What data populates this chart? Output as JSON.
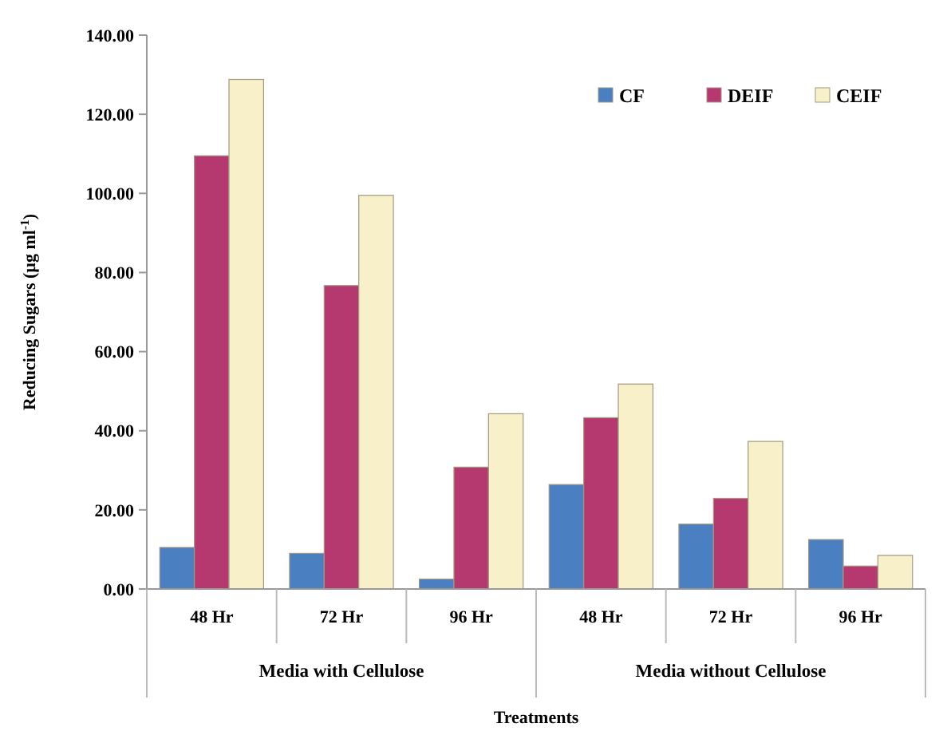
{
  "chart_data": {
    "type": "bar",
    "xlabel": "Treatments",
    "ylabel": "Reducing Sugars (µg ml$^{-1}$)",
    "categories": [
      "48 Hr",
      "72 Hr",
      "96 Hr",
      "48 Hr",
      "72 Hr",
      "96 Hr"
    ],
    "series": [
      {
        "name": "CF",
        "color": "#4a7fc1",
        "values": [
          10.5,
          9,
          2.5,
          26.4,
          16.4,
          12.5
        ]
      },
      {
        "name": "DEIF",
        "color": "#b5396f",
        "values": [
          109.5,
          76.7,
          30.8,
          43.3,
          22.9,
          5.8
        ]
      },
      {
        "name": "CEIF",
        "color": "#f8f0c8",
        "values": [
          128.8,
          99.5,
          44.3,
          51.8,
          37.3,
          8.5
        ]
      }
    ],
    "annotations": [
      "Media with Cellulose",
      "Media without Cellulose"
    ],
    "ylim": [
      0,
      140
    ],
    "yticks": [
      {
        "value": 0,
        "label": "0.00"
      },
      {
        "value": 20,
        "label": "20.00"
      },
      {
        "value": 40,
        "label": "40.00"
      },
      {
        "value": 60,
        "label": "60.00"
      },
      {
        "value": 80,
        "label": "80.00"
      },
      {
        "value": 100,
        "label": "100.00"
      },
      {
        "value": 120,
        "label": "120.00"
      },
      {
        "value": 140,
        "label": "140.00"
      }
    ],
    "legend": "top right"
  }
}
